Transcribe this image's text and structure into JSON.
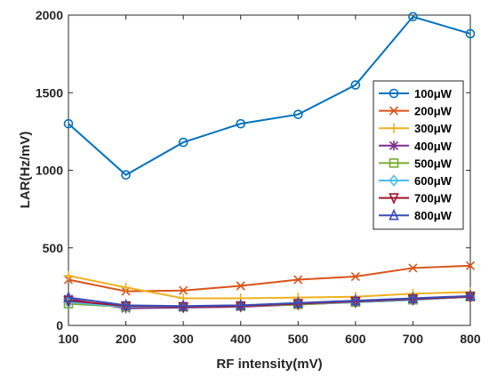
{
  "chart_data": {
    "type": "line",
    "xlabel": "RF intensity(mV)",
    "ylabel": "LAR(Hz/mV)",
    "xlim": [
      100,
      800
    ],
    "ylim": [
      0,
      2000
    ],
    "xticks": [
      100,
      200,
      300,
      400,
      500,
      600,
      700,
      800
    ],
    "yticks": [
      0,
      500,
      1000,
      1500,
      2000
    ],
    "grid": false,
    "legend_position": "right",
    "x": [
      100,
      200,
      300,
      400,
      500,
      600,
      700,
      800
    ],
    "series": [
      {
        "name": "100μW",
        "color": "#0072BD",
        "marker": "circle",
        "values": [
          1300,
          970,
          1180,
          1300,
          1360,
          1550,
          1990,
          1880
        ]
      },
      {
        "name": "200μW",
        "color": "#D95319",
        "marker": "x",
        "values": [
          295,
          220,
          225,
          255,
          295,
          315,
          370,
          385
        ]
      },
      {
        "name": "300μW",
        "color": "#EDB120",
        "marker": "plus",
        "values": [
          320,
          245,
          175,
          175,
          180,
          185,
          205,
          215
        ]
      },
      {
        "name": "400μW",
        "color": "#7E2F8E",
        "marker": "star",
        "values": [
          170,
          110,
          115,
          120,
          135,
          150,
          165,
          185
        ]
      },
      {
        "name": "500μW",
        "color": "#77AC30",
        "marker": "square",
        "values": [
          140,
          120,
          120,
          125,
          135,
          150,
          165,
          185
        ]
      },
      {
        "name": "600μW",
        "color": "#4DBEEE",
        "marker": "diamond",
        "values": [
          150,
          120,
          120,
          125,
          140,
          150,
          165,
          185
        ]
      },
      {
        "name": "700μW",
        "color": "#A2142F",
        "marker": "triangle-down",
        "values": [
          160,
          125,
          120,
          125,
          140,
          155,
          170,
          185
        ]
      },
      {
        "name": "800μW",
        "color": "#3A4CB8",
        "marker": "triangle-up",
        "values": [
          180,
          130,
          125,
          130,
          145,
          160,
          175,
          190
        ]
      }
    ]
  }
}
